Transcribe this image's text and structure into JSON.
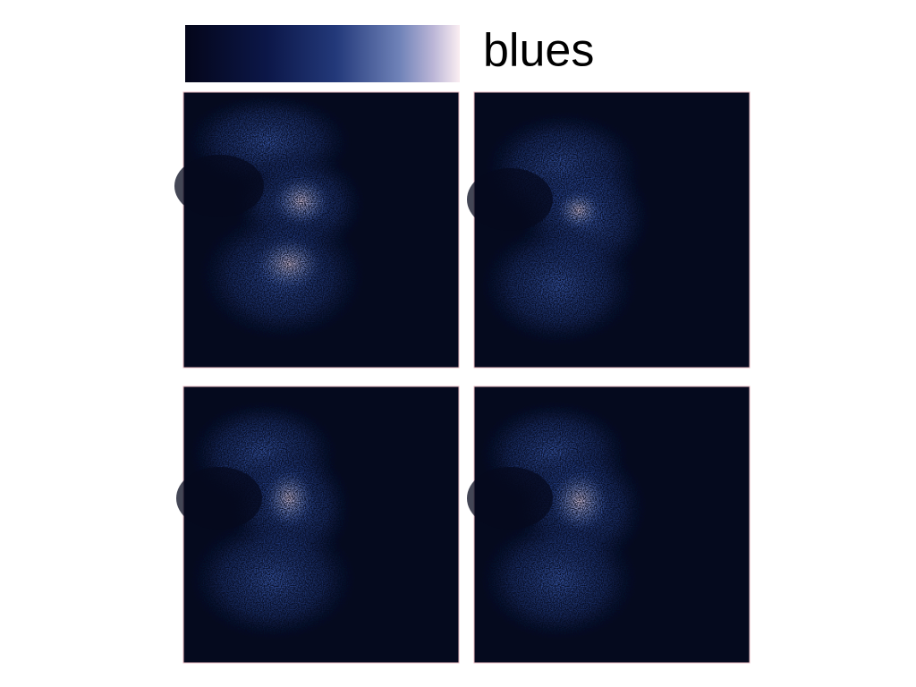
{
  "colormap": {
    "label": "blues"
  }
}
